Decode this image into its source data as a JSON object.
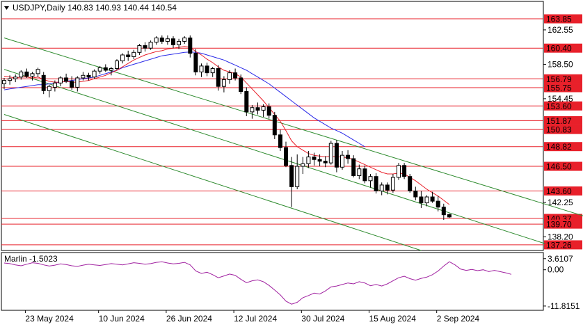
{
  "header": {
    "symbol_line": "USDJPY,Daily  140.83 140.93 140.44 140.54",
    "indicator_label": "Marlin -1.5023"
  },
  "colors": {
    "bull": "#ffffff",
    "bear": "#000000",
    "ma_fast": "#e8202a",
    "ma_slow": "#2a2ae8",
    "channel": "#2e8b2e",
    "level": "#e8202a",
    "marlin": "#a020a0",
    "frame": "#000000"
  },
  "chart_data": [
    {
      "type": "candlestick",
      "title": "USDJPY,Daily",
      "ohlc_last": {
        "open": 140.83,
        "high": 140.93,
        "low": 140.44,
        "close": 140.54
      },
      "x_tick_labels": [
        "23 May 2024",
        "10 Jun 2024",
        "26 Jun 2024",
        "12 Jul 2024",
        "30 Jul 2024",
        "15 Aug 2024",
        "2 Sep 2024"
      ],
      "y_tick_labels": [
        162.55,
        158.5,
        154.45,
        142.25,
        138.2
      ],
      "ylim": [
        136.6,
        165.9
      ],
      "levels": [
        163.85,
        160.4,
        156.79,
        155.75,
        153.6,
        151.87,
        150.83,
        148.82,
        146.5,
        143.6,
        140.37,
        139.7,
        137.26
      ],
      "level_labels": [
        "163.85",
        "160.40",
        "156.79",
        "155.75",
        "153.60",
        "151.87",
        "150.83",
        "148.82",
        "146.50",
        "143.60",
        "140.37",
        "139.70",
        "137.26"
      ],
      "candles": [
        [
          156.2,
          156.9,
          155.6,
          156.6
        ],
        [
          156.6,
          157.2,
          156.1,
          156.8
        ],
        [
          156.8,
          157.3,
          156.4,
          157.0
        ],
        [
          157.0,
          157.8,
          156.7,
          157.6
        ],
        [
          157.6,
          158.0,
          156.9,
          157.1
        ],
        [
          157.1,
          157.6,
          156.6,
          157.4
        ],
        [
          157.4,
          158.1,
          157.0,
          157.9
        ],
        [
          157.2,
          157.6,
          155.0,
          155.4
        ],
        [
          155.4,
          156.1,
          154.6,
          155.9
        ],
        [
          155.8,
          156.6,
          155.3,
          156.3
        ],
        [
          156.3,
          157.1,
          155.9,
          156.9
        ],
        [
          156.9,
          157.4,
          156.3,
          156.5
        ],
        [
          156.5,
          157.1,
          155.5,
          155.8
        ],
        [
          155.8,
          157.1,
          155.3,
          156.9
        ],
        [
          156.9,
          157.6,
          156.6,
          157.2
        ],
        [
          157.2,
          157.5,
          156.6,
          157.0
        ],
        [
          157.0,
          157.9,
          156.8,
          157.7
        ],
        [
          157.7,
          158.3,
          157.4,
          158.1
        ],
        [
          158.1,
          158.5,
          157.6,
          157.8
        ],
        [
          157.8,
          158.2,
          157.2,
          158.0
        ],
        [
          158.0,
          159.1,
          157.8,
          158.9
        ],
        [
          158.9,
          159.8,
          158.6,
          159.6
        ],
        [
          159.6,
          160.1,
          158.9,
          159.4
        ],
        [
          159.4,
          160.2,
          159.1,
          159.9
        ],
        [
          159.9,
          160.9,
          159.6,
          160.7
        ],
        [
          160.7,
          161.1,
          160.0,
          160.4
        ],
        [
          160.4,
          161.3,
          160.2,
          161.1
        ],
        [
          161.1,
          161.8,
          160.8,
          161.6
        ],
        [
          161.6,
          161.9,
          160.9,
          161.2
        ],
        [
          161.2,
          161.9,
          160.8,
          161.5
        ],
        [
          161.5,
          161.8,
          160.4,
          160.8
        ],
        [
          160.8,
          161.5,
          160.3,
          161.2
        ],
        [
          161.2,
          161.8,
          160.9,
          161.6
        ],
        [
          161.6,
          161.9,
          159.3,
          159.8
        ],
        [
          159.8,
          160.3,
          157.2,
          157.6
        ],
        [
          157.6,
          158.6,
          157.0,
          158.3
        ],
        [
          158.3,
          158.7,
          157.1,
          157.5
        ],
        [
          157.5,
          158.2,
          157.0,
          158.0
        ],
        [
          158.0,
          158.4,
          155.4,
          155.9
        ],
        [
          155.9,
          157.1,
          155.2,
          156.7
        ],
        [
          156.7,
          157.8,
          156.2,
          157.5
        ],
        [
          157.5,
          158.0,
          156.6,
          156.9
        ],
        [
          156.9,
          157.3,
          155.0,
          155.3
        ],
        [
          155.3,
          155.8,
          152.4,
          152.9
        ],
        [
          152.9,
          153.7,
          152.1,
          153.4
        ],
        [
          153.4,
          154.0,
          152.6,
          153.1
        ],
        [
          153.1,
          153.8,
          152.3,
          153.5
        ],
        [
          153.5,
          153.9,
          152.1,
          152.5
        ],
        [
          152.5,
          152.9,
          149.7,
          150.2
        ],
        [
          150.2,
          150.8,
          148.3,
          148.7
        ],
        [
          148.7,
          149.4,
          146.4,
          146.6
        ],
        [
          146.6,
          147.6,
          141.7,
          144.1
        ],
        [
          144.1,
          147.9,
          143.8,
          146.5
        ],
        [
          146.5,
          147.6,
          145.6,
          146.8
        ],
        [
          146.8,
          148.3,
          146.3,
          147.6
        ],
        [
          147.6,
          148.1,
          146.6,
          147.3
        ],
        [
          147.3,
          147.9,
          146.5,
          147.1
        ],
        [
          147.1,
          147.7,
          146.4,
          146.9
        ],
        [
          146.9,
          149.5,
          146.7,
          149.2
        ],
        [
          149.2,
          149.6,
          145.8,
          146.4
        ],
        [
          146.4,
          148.3,
          146.1,
          147.8
        ],
        [
          147.8,
          148.4,
          146.8,
          147.4
        ],
        [
          147.4,
          147.8,
          145.2,
          145.4
        ],
        [
          145.4,
          146.7,
          145.0,
          146.2
        ],
        [
          146.2,
          146.6,
          144.5,
          144.8
        ],
        [
          144.8,
          145.6,
          144.0,
          145.3
        ],
        [
          145.3,
          145.7,
          143.3,
          143.6
        ],
        [
          143.6,
          144.6,
          143.1,
          144.3
        ],
        [
          144.3,
          144.6,
          143.2,
          143.7
        ],
        [
          143.7,
          145.6,
          143.4,
          145.2
        ],
        [
          145.2,
          146.9,
          144.9,
          146.6
        ],
        [
          146.6,
          146.9,
          145.0,
          145.3
        ],
        [
          145.3,
          145.6,
          143.4,
          143.6
        ],
        [
          143.6,
          144.1,
          142.5,
          142.9
        ],
        [
          142.9,
          143.6,
          141.6,
          142.2
        ],
        [
          142.2,
          143.1,
          141.8,
          142.9
        ],
        [
          142.9,
          143.5,
          142.2,
          142.4
        ],
        [
          142.4,
          143.0,
          141.2,
          141.7
        ],
        [
          141.7,
          142.1,
          140.2,
          140.8
        ],
        [
          140.83,
          140.93,
          140.44,
          140.54
        ]
      ],
      "ma_fast": [
        157.1,
        157.0,
        156.9,
        157.0,
        157.0,
        156.9,
        157.0,
        156.7,
        156.5,
        156.4,
        156.4,
        156.5,
        156.4,
        156.4,
        156.5,
        156.6,
        156.8,
        157.0,
        157.2,
        157.5,
        157.8,
        158.2,
        158.6,
        159.0,
        159.3,
        159.6,
        159.8,
        160.0,
        160.1,
        160.3,
        160.4,
        160.5,
        160.6,
        160.5,
        160.0,
        159.6,
        159.1,
        158.7,
        158.2,
        157.8,
        157.6,
        157.4,
        157.0,
        156.3,
        155.6,
        154.9,
        154.2,
        153.4,
        152.6,
        151.8,
        150.7,
        149.5,
        148.8,
        148.4,
        148.0,
        147.8,
        147.7,
        147.6,
        147.7,
        147.6,
        147.6,
        147.5,
        147.3,
        147.0,
        146.7,
        146.4,
        146.1,
        145.8,
        145.6,
        145.6,
        145.7,
        145.6,
        145.2,
        144.8,
        144.3,
        143.8,
        143.4,
        143.0,
        142.5,
        142.0
      ],
      "ma_slow": [
        155.5,
        155.6,
        155.7,
        155.8,
        155.9,
        156.0,
        156.1,
        156.1,
        156.2,
        156.3,
        156.4,
        156.5,
        156.6,
        156.7,
        156.8,
        156.9,
        157.0,
        157.2,
        157.4,
        157.6,
        157.8,
        158.1,
        158.3,
        158.5,
        158.7,
        158.9,
        159.1,
        159.3,
        159.5,
        159.6,
        159.7,
        159.8,
        159.9,
        159.95,
        159.9,
        159.8,
        159.6,
        159.4,
        159.2,
        159.0,
        158.7,
        158.4,
        158.1,
        157.8,
        157.4,
        157.0,
        156.6,
        156.2,
        155.7,
        155.2,
        154.7,
        154.2,
        153.7,
        153.2,
        152.7,
        152.2,
        151.8,
        151.4,
        151.0,
        150.7,
        150.4,
        150.0,
        149.6,
        149.2,
        148.8
      ],
      "channels": [
        {
          "from": [
            0,
            161.6
          ],
          "to": [
            110,
            139.2
          ]
        },
        {
          "from": [
            0,
            157.9
          ],
          "to": [
            96,
            137.4
          ]
        },
        {
          "from": [
            0,
            152.6
          ],
          "to": [
            74,
            136.6
          ]
        }
      ]
    },
    {
      "type": "line",
      "name": "Marlin",
      "y_tick_labels": [
        3.6107,
        0.0,
        -11.8151
      ],
      "ylim": [
        -13.2,
        5.6
      ],
      "values": [
        2.2,
        2.0,
        1.6,
        1.3,
        1.8,
        2.3,
        2.1,
        1.6,
        1.2,
        1.5,
        1.9,
        1.7,
        1.3,
        1.1,
        1.5,
        1.8,
        1.6,
        1.4,
        1.7,
        2.0,
        1.8,
        1.6,
        1.9,
        2.3,
        2.1,
        1.8,
        2.0,
        2.4,
        2.6,
        2.2,
        1.9,
        2.1,
        2.4,
        1.6,
        -0.4,
        -1.2,
        -0.8,
        -1.6,
        -2.6,
        -2.0,
        -1.4,
        -1.8,
        -3.1,
        -4.2,
        -3.6,
        -3.3,
        -3.9,
        -5.1,
        -6.6,
        -8.2,
        -10.2,
        -11.2,
        -10.6,
        -9.1,
        -8.4,
        -7.6,
        -7.9,
        -6.9,
        -5.6,
        -5.3,
        -4.8,
        -4.3,
        -4.6,
        -3.9,
        -4.3,
        -5.2,
        -4.8,
        -5.3,
        -4.6,
        -3.6,
        -2.6,
        -2.1,
        -2.9,
        -3.4,
        -2.8,
        -2.4,
        -1.6,
        -0.4,
        1.2,
        2.6,
        1.6,
        0.2,
        -0.2,
        0.1,
        -0.3,
        0.0,
        -0.6,
        -0.2,
        -0.6,
        -1.0,
        -1.5
      ]
    }
  ]
}
